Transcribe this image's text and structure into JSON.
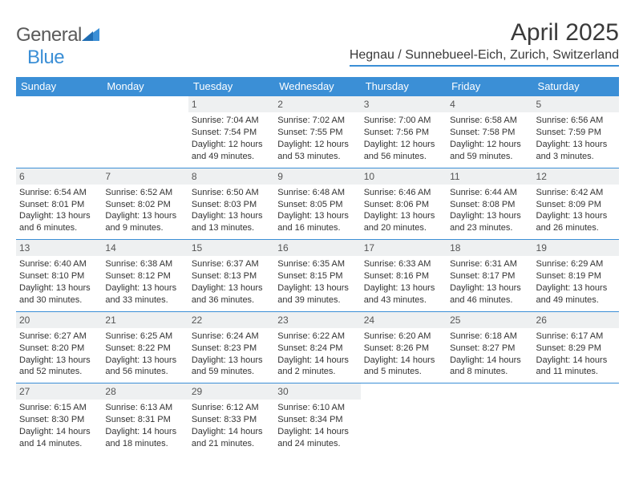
{
  "brand": {
    "part1": "General",
    "part2": "Blue"
  },
  "title": "April 2025",
  "location": "Hegnau / Sunnebueel-Eich, Zurich, Switzerland",
  "colors": {
    "accent": "#3b8fd6",
    "header_bg": "#3b8fd6",
    "daynum_bg": "#eef0f1",
    "text": "#333333"
  },
  "dayHeaders": [
    "Sunday",
    "Monday",
    "Tuesday",
    "Wednesday",
    "Thursday",
    "Friday",
    "Saturday"
  ],
  "weeks": [
    [
      null,
      null,
      {
        "n": "1",
        "sr": "7:04 AM",
        "ss": "7:54 PM",
        "dl": "12 hours and 49 minutes."
      },
      {
        "n": "2",
        "sr": "7:02 AM",
        "ss": "7:55 PM",
        "dl": "12 hours and 53 minutes."
      },
      {
        "n": "3",
        "sr": "7:00 AM",
        "ss": "7:56 PM",
        "dl": "12 hours and 56 minutes."
      },
      {
        "n": "4",
        "sr": "6:58 AM",
        "ss": "7:58 PM",
        "dl": "12 hours and 59 minutes."
      },
      {
        "n": "5",
        "sr": "6:56 AM",
        "ss": "7:59 PM",
        "dl": "13 hours and 3 minutes."
      }
    ],
    [
      {
        "n": "6",
        "sr": "6:54 AM",
        "ss": "8:01 PM",
        "dl": "13 hours and 6 minutes."
      },
      {
        "n": "7",
        "sr": "6:52 AM",
        "ss": "8:02 PM",
        "dl": "13 hours and 9 minutes."
      },
      {
        "n": "8",
        "sr": "6:50 AM",
        "ss": "8:03 PM",
        "dl": "13 hours and 13 minutes."
      },
      {
        "n": "9",
        "sr": "6:48 AM",
        "ss": "8:05 PM",
        "dl": "13 hours and 16 minutes."
      },
      {
        "n": "10",
        "sr": "6:46 AM",
        "ss": "8:06 PM",
        "dl": "13 hours and 20 minutes."
      },
      {
        "n": "11",
        "sr": "6:44 AM",
        "ss": "8:08 PM",
        "dl": "13 hours and 23 minutes."
      },
      {
        "n": "12",
        "sr": "6:42 AM",
        "ss": "8:09 PM",
        "dl": "13 hours and 26 minutes."
      }
    ],
    [
      {
        "n": "13",
        "sr": "6:40 AM",
        "ss": "8:10 PM",
        "dl": "13 hours and 30 minutes."
      },
      {
        "n": "14",
        "sr": "6:38 AM",
        "ss": "8:12 PM",
        "dl": "13 hours and 33 minutes."
      },
      {
        "n": "15",
        "sr": "6:37 AM",
        "ss": "8:13 PM",
        "dl": "13 hours and 36 minutes."
      },
      {
        "n": "16",
        "sr": "6:35 AM",
        "ss": "8:15 PM",
        "dl": "13 hours and 39 minutes."
      },
      {
        "n": "17",
        "sr": "6:33 AM",
        "ss": "8:16 PM",
        "dl": "13 hours and 43 minutes."
      },
      {
        "n": "18",
        "sr": "6:31 AM",
        "ss": "8:17 PM",
        "dl": "13 hours and 46 minutes."
      },
      {
        "n": "19",
        "sr": "6:29 AM",
        "ss": "8:19 PM",
        "dl": "13 hours and 49 minutes."
      }
    ],
    [
      {
        "n": "20",
        "sr": "6:27 AM",
        "ss": "8:20 PM",
        "dl": "13 hours and 52 minutes."
      },
      {
        "n": "21",
        "sr": "6:25 AM",
        "ss": "8:22 PM",
        "dl": "13 hours and 56 minutes."
      },
      {
        "n": "22",
        "sr": "6:24 AM",
        "ss": "8:23 PM",
        "dl": "13 hours and 59 minutes."
      },
      {
        "n": "23",
        "sr": "6:22 AM",
        "ss": "8:24 PM",
        "dl": "14 hours and 2 minutes."
      },
      {
        "n": "24",
        "sr": "6:20 AM",
        "ss": "8:26 PM",
        "dl": "14 hours and 5 minutes."
      },
      {
        "n": "25",
        "sr": "6:18 AM",
        "ss": "8:27 PM",
        "dl": "14 hours and 8 minutes."
      },
      {
        "n": "26",
        "sr": "6:17 AM",
        "ss": "8:29 PM",
        "dl": "14 hours and 11 minutes."
      }
    ],
    [
      {
        "n": "27",
        "sr": "6:15 AM",
        "ss": "8:30 PM",
        "dl": "14 hours and 14 minutes."
      },
      {
        "n": "28",
        "sr": "6:13 AM",
        "ss": "8:31 PM",
        "dl": "14 hours and 18 minutes."
      },
      {
        "n": "29",
        "sr": "6:12 AM",
        "ss": "8:33 PM",
        "dl": "14 hours and 21 minutes."
      },
      {
        "n": "30",
        "sr": "6:10 AM",
        "ss": "8:34 PM",
        "dl": "14 hours and 24 minutes."
      },
      null,
      null,
      null
    ]
  ],
  "labels": {
    "sunrise": "Sunrise:",
    "sunset": "Sunset:",
    "daylight": "Daylight:"
  }
}
